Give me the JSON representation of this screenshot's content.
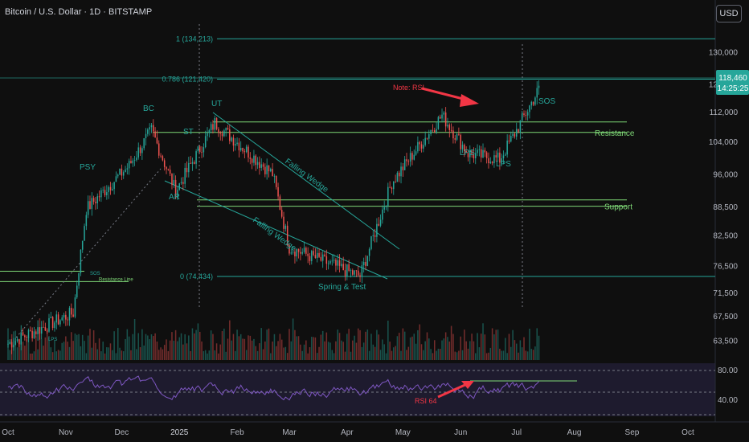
{
  "header": {
    "title": "Bitcoin / U.S. Dollar · 1D · BITSTAMP",
    "currency": "USD"
  },
  "colors": {
    "up": "#26a69a",
    "down": "#ef5350",
    "annot": "#26a69a",
    "level": "#7fd877",
    "arrow": "#f23645",
    "rsi": "#7e57c2",
    "bg": "#0f0f0f"
  },
  "chart_data": {
    "type": "candlestick",
    "symbol": "Bitcoin / U.S. Dollar",
    "timeframe": "1D",
    "exchange": "BITSTAMP",
    "x_range": [
      "2024-10-01",
      "2025-10-20"
    ],
    "y_scale": "log",
    "y_range": [
      60500,
      142000
    ],
    "y_ticks": [
      "130,000",
      "120,000",
      "112,000",
      "104,000",
      "96,000",
      "88,500",
      "82,500",
      "76,500",
      "71,500",
      "67,500",
      "63,500"
    ],
    "x_ticks": [
      "Oct",
      "Nov",
      "Dec",
      "2025",
      "Feb",
      "Mar",
      "Apr",
      "May",
      "Jun",
      "Jul",
      "Aug",
      "Sep",
      "Oct"
    ],
    "last_price": {
      "value": "118,460",
      "countdown": "14:25:25"
    },
    "fib_levels": [
      {
        "label": "1 (134,213)",
        "value": 134213
      },
      {
        "label": "0.786 (121,420)",
        "value": 121420
      },
      {
        "label": "0 (74,434)",
        "value": 74434
      }
    ],
    "series": [
      {
        "name": "BTCUSD",
        "ohlc_key_points": [
          {
            "date": "2024-10-01",
            "close": 63000
          },
          {
            "date": "2024-11-05",
            "close": 68000
          },
          {
            "date": "2024-11-12",
            "close": 88000
          },
          {
            "date": "2024-12-05",
            "close": 98000
          },
          {
            "date": "2024-12-17",
            "close": 107000
          },
          {
            "date": "2024-12-30",
            "close": 92000
          },
          {
            "date": "2025-01-20",
            "close": 109000
          },
          {
            "date": "2025-02-20",
            "close": 96000
          },
          {
            "date": "2025-03-01",
            "close": 80000
          },
          {
            "date": "2025-04-08",
            "close": 74500
          },
          {
            "date": "2025-04-25",
            "close": 94000
          },
          {
            "date": "2025-05-22",
            "close": 111000
          },
          {
            "date": "2025-06-05",
            "close": 101000
          },
          {
            "date": "2025-06-22",
            "close": 99500
          },
          {
            "date": "2025-07-01",
            "close": 107000
          },
          {
            "date": "2025-07-13",
            "close": 118460
          }
        ]
      }
    ],
    "levels": [
      {
        "label": "Resistance",
        "value": 106400
      },
      {
        "label": "Support",
        "value": 90000
      },
      {
        "label": "Resistance Line",
        "value": 73500
      }
    ],
    "annotations": [
      "PSY",
      "BC",
      "AR",
      "ST",
      "UT",
      "Falling Wedge",
      "Falling Wedge",
      "Spring & Test",
      "Note: RSI",
      "LPS",
      "LPS",
      "SOS",
      "SOS",
      "LPS"
    ],
    "rsi": {
      "ticks": [
        "80.00",
        "40.00"
      ],
      "label": "RSI 64",
      "y_range": [
        0,
        100
      ]
    }
  }
}
